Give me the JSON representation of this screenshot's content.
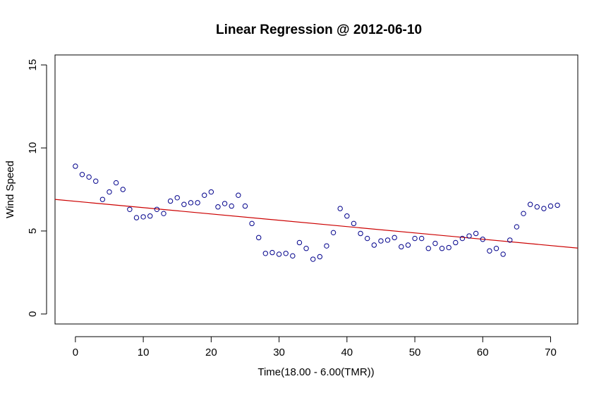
{
  "chart_data": {
    "type": "scatter",
    "title": "Linear Regression @ 2012-06-10",
    "xlabel": "Time(18.00 - 6.00(TMR))",
    "ylabel": "Wind Speed",
    "xlim": [
      -3,
      74
    ],
    "ylim": [
      -0.6,
      15.6
    ],
    "xticks": [
      0,
      10,
      20,
      30,
      40,
      50,
      60,
      70
    ],
    "yticks": [
      0,
      5,
      10,
      15
    ],
    "grid": false,
    "point_color": "#00008b",
    "line_color": "#cc0000",
    "x": [
      0,
      1,
      2,
      3,
      4,
      5,
      6,
      7,
      8,
      9,
      10,
      11,
      12,
      13,
      14,
      15,
      16,
      17,
      18,
      19,
      20,
      21,
      22,
      23,
      24,
      25,
      26,
      27,
      28,
      29,
      30,
      31,
      32,
      33,
      34,
      35,
      36,
      37,
      38,
      39,
      40,
      41,
      42,
      43,
      44,
      45,
      46,
      47,
      48,
      49,
      50,
      51,
      52,
      53,
      54,
      55,
      56,
      57,
      58,
      59,
      60,
      61,
      62,
      63,
      64,
      65,
      66,
      67,
      68,
      69,
      70,
      71
    ],
    "y": [
      8.9,
      8.4,
      8.25,
      8.0,
      6.9,
      7.35,
      7.9,
      7.5,
      6.3,
      5.8,
      5.85,
      5.9,
      6.3,
      6.05,
      6.8,
      7.0,
      6.6,
      6.7,
      6.7,
      7.15,
      7.35,
      6.45,
      6.65,
      6.5,
      7.15,
      6.5,
      5.45,
      4.6,
      3.65,
      3.7,
      3.6,
      3.65,
      3.5,
      4.3,
      3.95,
      3.3,
      3.45,
      4.1,
      4.9,
      6.35,
      5.9,
      5.45,
      4.85,
      4.55,
      4.15,
      4.4,
      4.45,
      4.6,
      4.05,
      4.15,
      4.55,
      4.55,
      3.95,
      4.25,
      3.95,
      4.0,
      4.3,
      4.55,
      4.7,
      4.85,
      4.5,
      3.8,
      3.95,
      3.6,
      4.45,
      5.25,
      6.05,
      6.6,
      6.45,
      6.35,
      6.5,
      6.55
    ],
    "regression_line": {
      "x": [
        -3,
        74
      ],
      "y": [
        6.9,
        3.97
      ]
    }
  }
}
